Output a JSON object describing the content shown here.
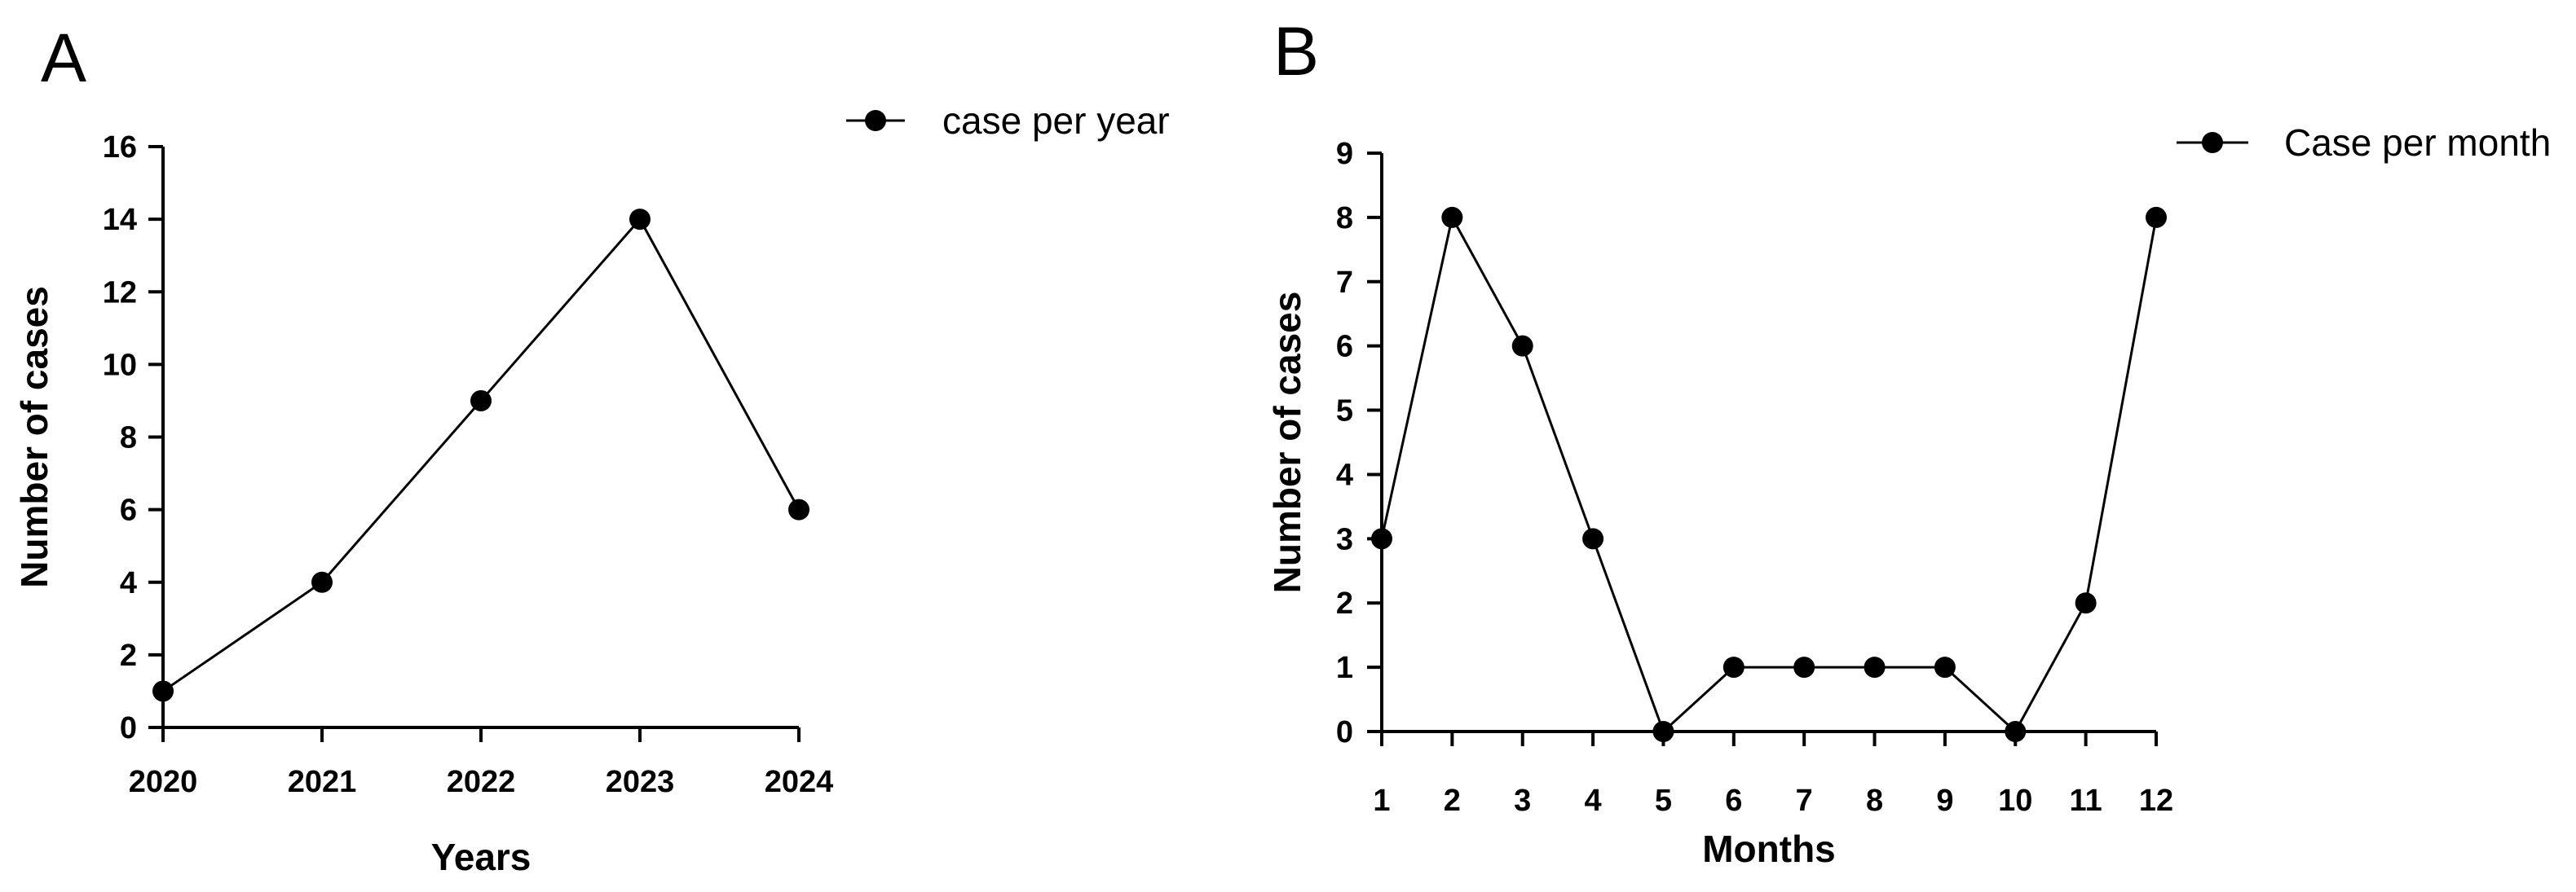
{
  "colors": {
    "ink": "#000000",
    "background": "#ffffff"
  },
  "chart_data": [
    {
      "panel": "A",
      "type": "line",
      "title": "",
      "xlabel": "Years",
      "ylabel": "Number of cases",
      "categories": [
        "2020",
        "2021",
        "2022",
        "2023",
        "2024"
      ],
      "series": [
        {
          "name": "case per year",
          "values": [
            1,
            4,
            9,
            14,
            6
          ]
        }
      ],
      "ylim": [
        0,
        16
      ],
      "yticks": [
        0,
        2,
        4,
        6,
        8,
        10,
        12,
        14,
        16
      ],
      "grid": false,
      "legend": "top-right",
      "marker": "circle"
    },
    {
      "panel": "B",
      "type": "line",
      "title": "",
      "xlabel": "Months",
      "ylabel": "Number of cases",
      "categories": [
        "1",
        "2",
        "3",
        "4",
        "5",
        "6",
        "7",
        "8",
        "9",
        "10",
        "11",
        "12"
      ],
      "series": [
        {
          "name": "Case per month",
          "values": [
            3,
            8,
            6,
            3,
            0,
            1,
            1,
            1,
            1,
            0,
            2,
            8
          ]
        }
      ],
      "ylim": [
        0,
        9
      ],
      "yticks": [
        0,
        1,
        2,
        3,
        4,
        5,
        6,
        7,
        8,
        9
      ],
      "grid": false,
      "legend": "top-right",
      "marker": "circle"
    }
  ]
}
